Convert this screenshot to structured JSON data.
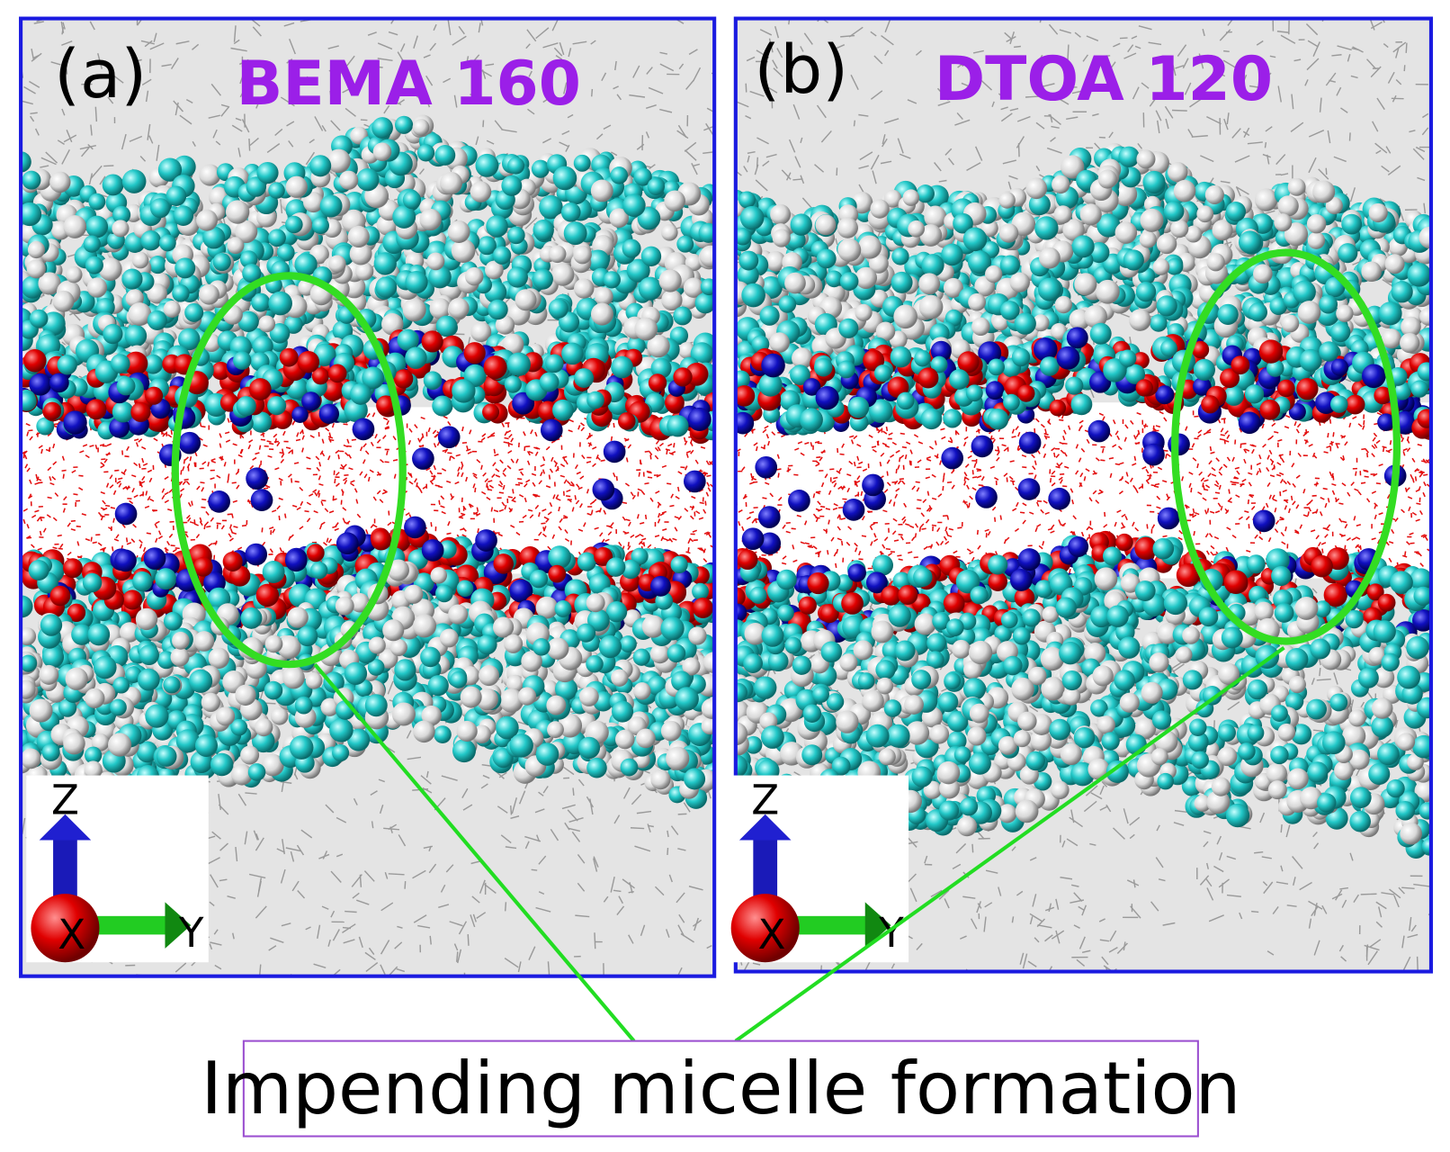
{
  "panels": [
    {
      "label": "(a)",
      "title": "BEMA 160",
      "axes": {
        "z": "Z",
        "x": "X",
        "y": "Y"
      }
    },
    {
      "label": "(b)",
      "title": "DTOA 120",
      "axes": {
        "z": "Z",
        "x": "X",
        "y": "Y"
      }
    }
  ],
  "callout": "Impending micelle formation"
}
